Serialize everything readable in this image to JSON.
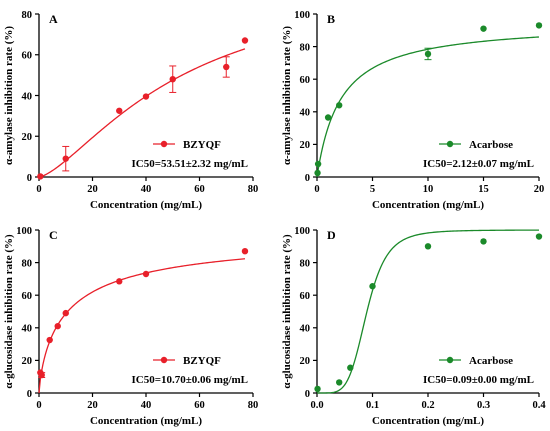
{
  "chart_data": [
    {
      "type": "scatter",
      "panel_label": "A",
      "color": "#e8202a",
      "xlabel": "Concentration (mg/mL)",
      "ylabel": "α-amylase  inhibition rate (%)",
      "xlim": [
        0,
        80
      ],
      "ylim": [
        0,
        80
      ],
      "xticks": [
        0,
        20,
        40,
        60,
        80
      ],
      "yticks": [
        0,
        20,
        40,
        60,
        80
      ],
      "legend": "BZYQF",
      "ic50": "IC50=53.51±2.32 mg/mL",
      "x": [
        0.5,
        10,
        30,
        40,
        50,
        70,
        77
      ],
      "y": [
        0.3,
        9,
        32.5,
        39.5,
        48,
        54,
        67
      ],
      "err": [
        0,
        6,
        0,
        0,
        6.5,
        5,
        0
      ],
      "fit": {
        "model": "hill",
        "ec50": 53.51,
        "top": 100,
        "n": 1.45,
        "xmax": 77
      }
    },
    {
      "type": "scatter",
      "panel_label": "B",
      "color": "#1b8a2a",
      "xlabel": "Concentration (mg/mL)",
      "ylabel": "α-amylase  inhibition rate (%)",
      "xlim": [
        0,
        20
      ],
      "ylim": [
        0,
        100
      ],
      "xticks": [
        0,
        5,
        10,
        15,
        20
      ],
      "yticks": [
        0,
        20,
        40,
        60,
        80,
        100
      ],
      "legend": "Acarbose",
      "ic50": "IC50=2.12±0.07 mg/mL",
      "x": [
        0.05,
        0.1,
        1,
        2,
        10,
        15,
        20
      ],
      "y": [
        2.5,
        8,
        36.5,
        44,
        75.5,
        91,
        93
      ],
      "err": [
        0,
        0,
        0,
        0,
        3.5,
        0,
        0
      ],
      "fit": {
        "model": "hill",
        "ec50": 2.12,
        "top": 95,
        "n": 1.0,
        "xmax": 20
      }
    },
    {
      "type": "scatter",
      "panel_label": "C",
      "color": "#e8202a",
      "xlabel": "Concentration (mg/mL)",
      "ylabel": "α-glucosidase  inhibition rate (%)",
      "xlim": [
        0,
        80
      ],
      "ylim": [
        0,
        100
      ],
      "xticks": [
        0,
        20,
        40,
        60,
        80
      ],
      "yticks": [
        0,
        20,
        40,
        60,
        80,
        100
      ],
      "legend": "BZYQF",
      "ic50": "IC50=10.70±0.06 mg/mL",
      "x": [
        0.5,
        1,
        4,
        7,
        10,
        30,
        40,
        77
      ],
      "y": [
        12.5,
        11,
        32.5,
        41,
        49,
        68.5,
        73,
        87
      ],
      "err": [
        0,
        1.5,
        0,
        0,
        0,
        0,
        0,
        0
      ],
      "fit": {
        "model": "hill",
        "ec50": 10.7,
        "top": 100,
        "n": 0.78,
        "xmax": 77
      }
    },
    {
      "type": "scatter",
      "panel_label": "D",
      "color": "#1b8a2a",
      "xlabel": "Concentration (mg/mL)",
      "ylabel": "α-glucosidase  inhibition rate (%)",
      "xlim": [
        0,
        0.4
      ],
      "ylim": [
        0,
        100
      ],
      "xticks": [
        "0.0",
        "0.1",
        "0.2",
        "0.3",
        "0.4"
      ],
      "yticks": [
        0,
        20,
        40,
        60,
        80,
        100
      ],
      "legend": "Acarbose",
      "ic50": "IC50=0.09±0.00 mg/mL",
      "x": [
        0.001,
        0.04,
        0.06,
        0.1,
        0.2,
        0.3,
        0.4
      ],
      "y": [
        2.5,
        6.5,
        15.5,
        65.5,
        90,
        93,
        96
      ],
      "err": [
        0,
        0,
        0,
        0,
        0,
        0,
        0
      ],
      "fit": {
        "model": "hill",
        "ec50": 0.09,
        "top": 100,
        "n": 5,
        "xmax": 0.4
      }
    }
  ]
}
